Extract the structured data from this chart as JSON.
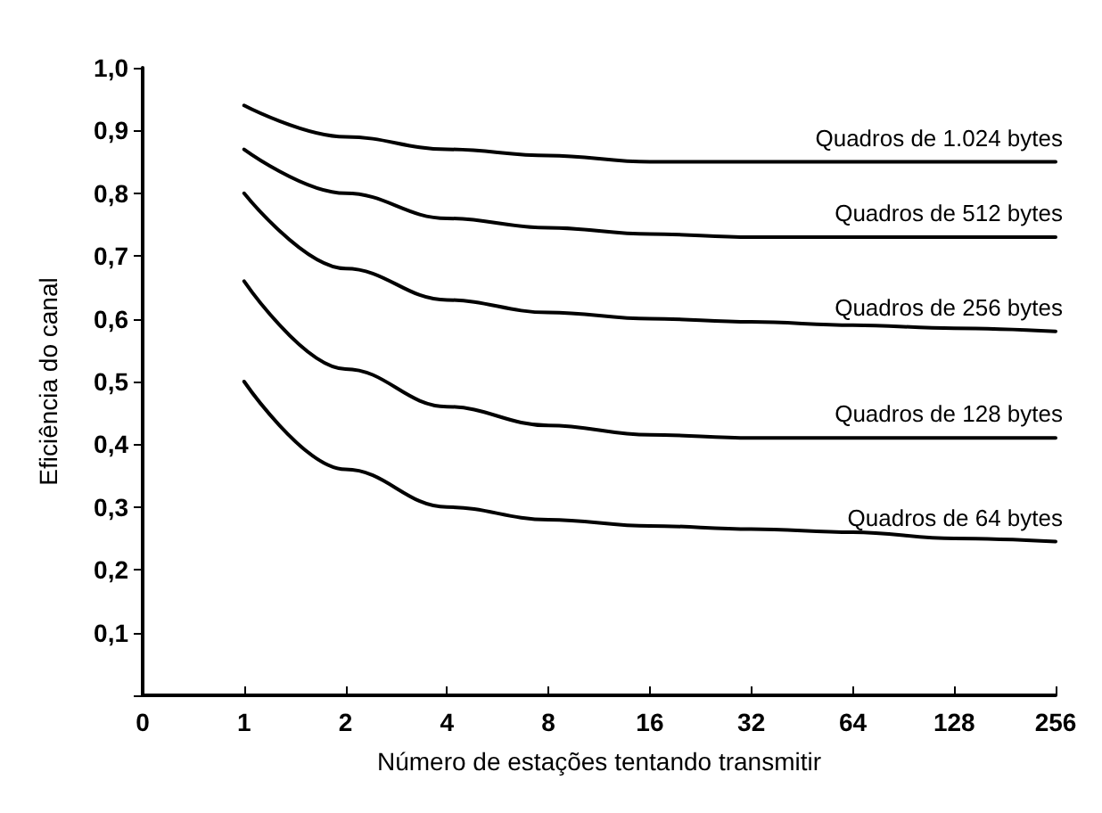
{
  "chart_data": {
    "type": "line",
    "xlabel": "Número de estações tentando transmitir",
    "ylabel": "Eficiência do canal",
    "categories": [
      "0",
      "1",
      "2",
      "4",
      "8",
      "16",
      "32",
      "64",
      "128",
      "256"
    ],
    "ylim": [
      0,
      1
    ],
    "yticks": [
      {
        "value": 0,
        "label": null
      },
      {
        "value": 0.1,
        "label": "0,1"
      },
      {
        "value": 0.2,
        "label": "0,2"
      },
      {
        "value": 0.3,
        "label": "0,3"
      },
      {
        "value": 0.4,
        "label": "0,4"
      },
      {
        "value": 0.5,
        "label": "0,5"
      },
      {
        "value": 0.6,
        "label": "0,6"
      },
      {
        "value": 0.7,
        "label": "0,7"
      },
      {
        "value": 0.8,
        "label": "0,8"
      },
      {
        "value": 0.9,
        "label": "0,9"
      },
      {
        "value": 1,
        "label": "1,0"
      }
    ],
    "grid": false,
    "legend": false,
    "marker": "none",
    "line_style": "solid",
    "series": [
      {
        "name": "Quadros de 1.024 bytes",
        "color": "#000000",
        "values": [
          null,
          0.94,
          0.89,
          0.87,
          0.86,
          0.85,
          0.85,
          0.85,
          0.85,
          0.85
        ]
      },
      {
        "name": "Quadros de 512 bytes",
        "color": "#000000",
        "values": [
          null,
          0.87,
          0.8,
          0.76,
          0.745,
          0.735,
          0.73,
          0.73,
          0.73,
          0.73
        ]
      },
      {
        "name": "Quadros de 256 bytes",
        "color": "#000000",
        "values": [
          null,
          0.8,
          0.68,
          0.63,
          0.61,
          0.6,
          0.595,
          0.59,
          0.585,
          0.58
        ]
      },
      {
        "name": "Quadros de 128 bytes",
        "color": "#000000",
        "values": [
          null,
          0.66,
          0.52,
          0.46,
          0.43,
          0.415,
          0.41,
          0.41,
          0.41,
          0.41
        ]
      },
      {
        "name": "Quadros de 64 bytes",
        "color": "#000000",
        "values": [
          null,
          0.5,
          0.36,
          0.3,
          0.28,
          0.27,
          0.265,
          0.26,
          0.25,
          0.245
        ]
      }
    ]
  }
}
